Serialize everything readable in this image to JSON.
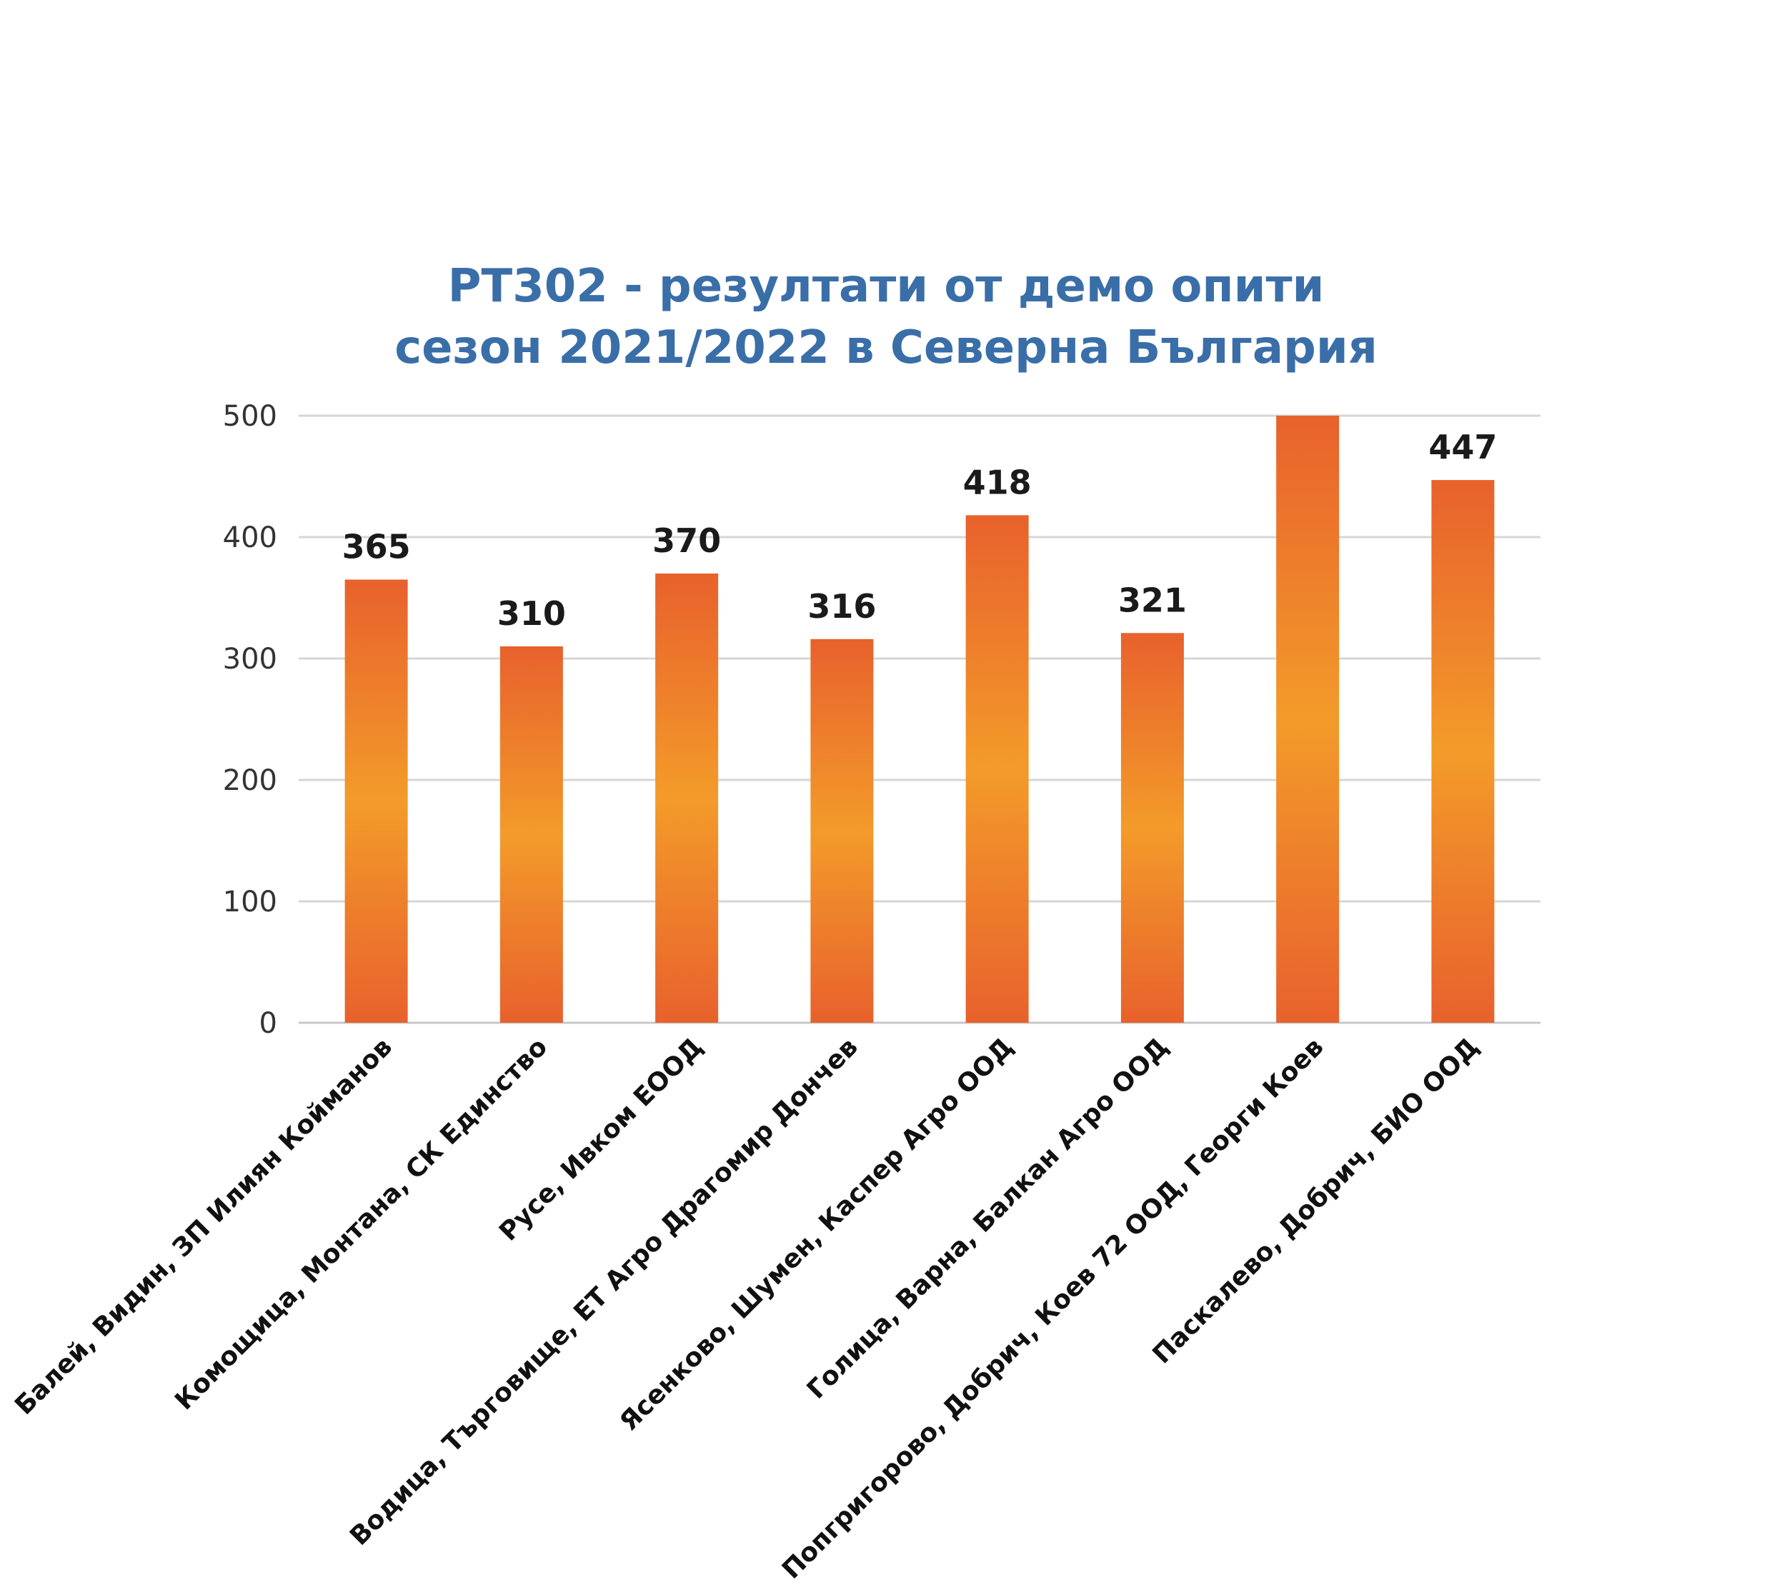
{
  "chart_data": {
    "type": "bar",
    "title_lines": [
      "PT302 - резултати от демо опити",
      "сезон 2021/2022 в Северна България"
    ],
    "categories": [
      "Балей, Видин, ЗП Илиян Койманов",
      "Комощица, Монтана, СК Единство",
      "Русе, Ивком ЕООД",
      "Водица, Търговище, ЕТ Агро Драгомир Дончев",
      "Ясенково, Шумен, Каспер Агро ООД",
      "Голица, Варна, Балкан Агро ООД",
      "Попгригорово, Добрич, Коев 72 ООД, Георги Коев",
      "Паскалево, Добрич, БИО ООД"
    ],
    "values": [
      365,
      310,
      370,
      316,
      418,
      321,
      500,
      447
    ],
    "data_labels": [
      "365",
      "310",
      "370",
      "316",
      "418",
      "321",
      "",
      "447"
    ],
    "ylim": [
      0,
      500
    ],
    "yticks": [
      0,
      100,
      200,
      300,
      400,
      500
    ],
    "xlabel": "",
    "ylabel": "",
    "grid": true,
    "legend": "none",
    "colors": {
      "bar_edge": "#e8612c",
      "bar_center": "#f39b2a",
      "title": "#3a6ea8",
      "grid": "#d6d6d6"
    }
  }
}
